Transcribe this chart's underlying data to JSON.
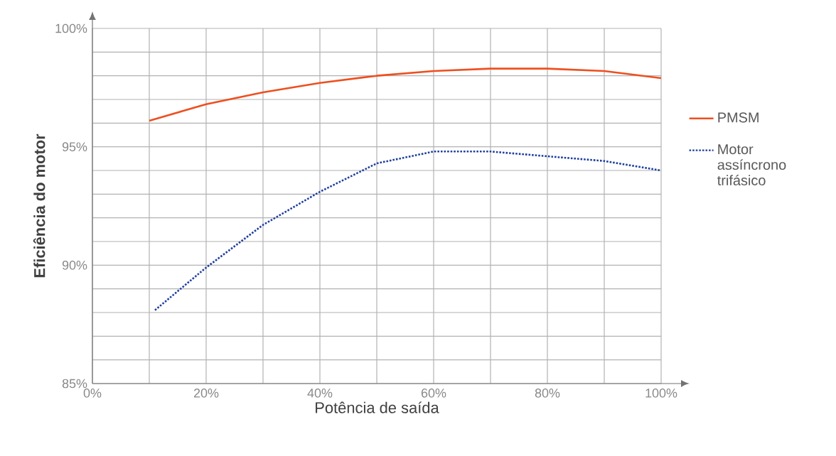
{
  "chart_data": {
    "type": "line",
    "xlabel": "Potência de saída",
    "ylabel": "Eficiência do motor",
    "xlim": [
      0,
      100
    ],
    "ylim": [
      85,
      100
    ],
    "xticks": [
      {
        "value": 0,
        "label": "0%"
      },
      {
        "value": 20,
        "label": "20%"
      },
      {
        "value": 40,
        "label": "40%"
      },
      {
        "value": 60,
        "label": "60%"
      },
      {
        "value": 80,
        "label": "80%"
      },
      {
        "value": 100,
        "label": "100%"
      }
    ],
    "yticks": [
      {
        "value": 85,
        "label": "85%"
      },
      {
        "value": 90,
        "label": "90%"
      },
      {
        "value": 95,
        "label": "95%"
      },
      {
        "value": 100,
        "label": "100%"
      }
    ],
    "grid": true,
    "legend": "right",
    "marker": "none",
    "series": [
      {
        "name": "PMSM",
        "color": "#ee4f1f",
        "line_style": "solid",
        "x": [
          10,
          20,
          30,
          40,
          50,
          60,
          70,
          80,
          90,
          100
        ],
        "values": [
          96.1,
          96.8,
          97.3,
          97.7,
          98.0,
          98.2,
          98.3,
          98.3,
          98.2,
          97.9
        ]
      },
      {
        "name": "Motor assíncrono trifásico",
        "color": "#1f3f9f",
        "line_style": "dotted",
        "x": [
          11,
          20,
          30,
          40,
          50,
          60,
          66,
          70,
          80,
          90,
          100
        ],
        "values": [
          88.1,
          89.9,
          91.7,
          93.1,
          94.3,
          94.8,
          94.8,
          94.8,
          94.6,
          94.4,
          94.0
        ]
      }
    ]
  }
}
